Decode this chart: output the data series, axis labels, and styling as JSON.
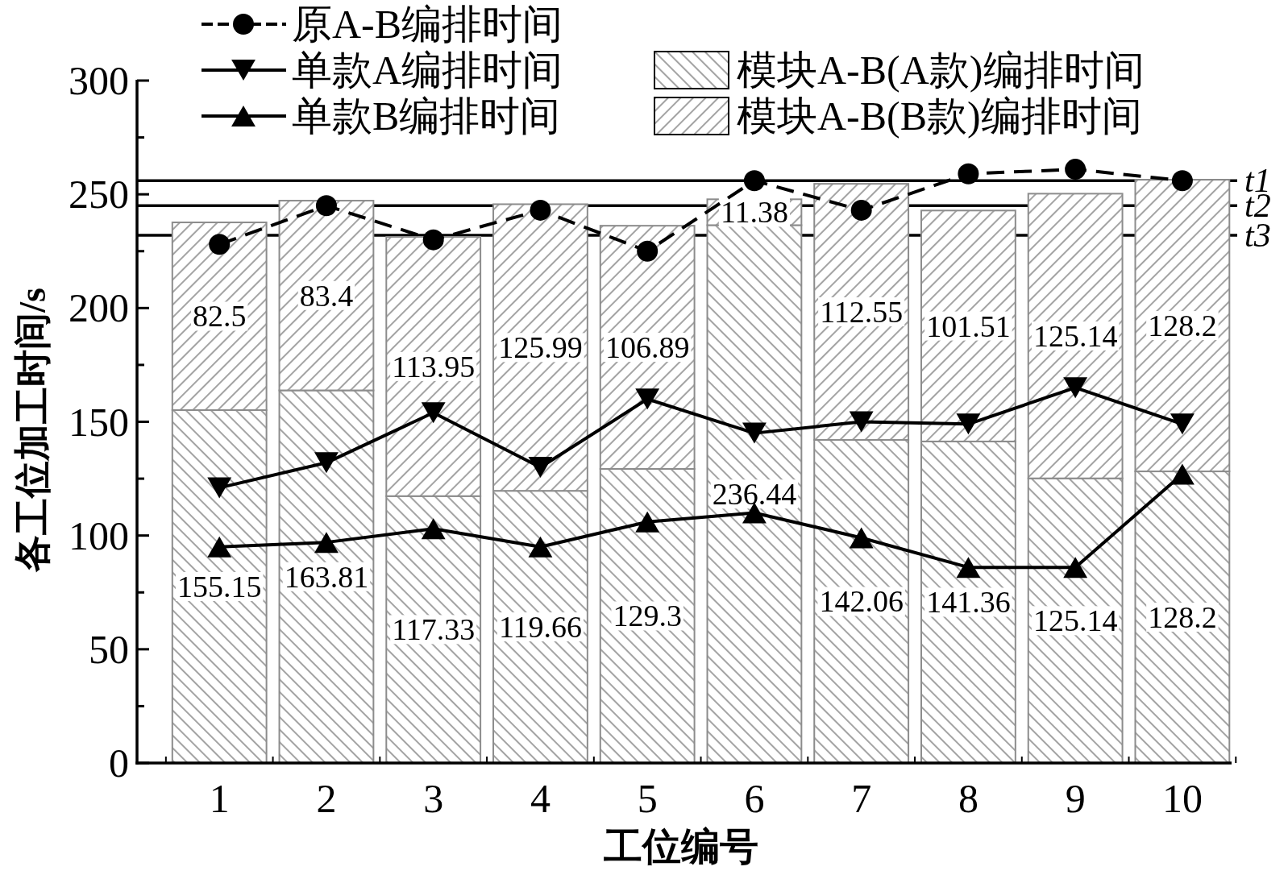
{
  "chart_data": {
    "type": "bar",
    "stacked": true,
    "categories": [
      "1",
      "2",
      "3",
      "4",
      "5",
      "6",
      "7",
      "8",
      "9",
      "10"
    ],
    "xlabel": "工位编号",
    "ylabel": "各工位加工时间/s",
    "ylim": [
      0,
      300
    ],
    "yticks": [
      0,
      {
        "value": 25,
        "label": null
      },
      50,
      {
        "value": 75,
        "label": null
      },
      100,
      {
        "value": 125,
        "label": null
      },
      150,
      {
        "value": 175,
        "label": null
      },
      200,
      {
        "value": 225,
        "label": null
      },
      250,
      {
        "value": 275,
        "label": null
      },
      300
    ],
    "series": [
      {
        "name": "模块A-B(A款)编排时间",
        "color": "#8c8c8c",
        "values": [
          155.15,
          163.81,
          117.33,
          119.66,
          129.3,
          236.44,
          142.06,
          141.36,
          125.14,
          128.2
        ],
        "value_labels": [
          "155.15",
          "163.81",
          "117.33",
          "119.66",
          "129.3",
          "236.44",
          "142.06",
          "141.36",
          "125.14",
          "128.2"
        ]
      },
      {
        "name": "模块A-B(B款)编排时间",
        "color": "#8c8c8c",
        "values": [
          82.5,
          83.4,
          113.95,
          125.99,
          106.89,
          11.38,
          112.55,
          101.51,
          125.14,
          128.2
        ],
        "value_labels": [
          "82.5",
          "83.4",
          "113.95",
          "125.99",
          "106.89",
          "11.38",
          "112.55",
          "101.51",
          "125.14",
          "128.2"
        ]
      },
      {
        "name": "原A-B编排时间",
        "type": "line",
        "color": "#000000",
        "marker": "circle",
        "line_style": "dashed",
        "values": [
          228,
          245,
          230,
          243,
          225,
          256,
          243,
          259,
          261,
          256
        ]
      },
      {
        "name": "单款A编排时间",
        "type": "line",
        "color": "#000000",
        "marker": "triangle-down",
        "line_style": "solid",
        "values": [
          121,
          132,
          154,
          130,
          160,
          145,
          150,
          149,
          165,
          149
        ]
      },
      {
        "name": "单款B编排时间",
        "type": "line",
        "color": "#000000",
        "marker": "triangle",
        "line_style": "solid",
        "values": [
          95,
          97,
          103,
          95,
          106,
          110,
          99,
          86,
          86,
          127
        ]
      }
    ],
    "ref_lines": [
      {
        "axis": "y",
        "value": 256,
        "label": "t1",
        "color": "#000000"
      },
      {
        "axis": "y",
        "value": 245,
        "label": "t2",
        "color": "#000000"
      },
      {
        "axis": "y",
        "value": 232,
        "label": "t3",
        "color": "#000000"
      }
    ],
    "legend": "top"
  }
}
